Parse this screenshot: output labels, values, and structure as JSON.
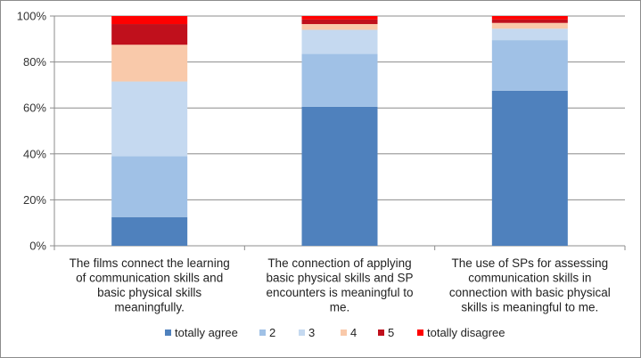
{
  "chart_data": {
    "type": "bar",
    "stacked": true,
    "percent": true,
    "categories": [
      [
        "The films connect the learning",
        "of communication skills and",
        "basic physical skills",
        "meaningfully."
      ],
      [
        "The connection of applying",
        "basic physical skills and SP",
        "encounters is meaningful to",
        "me."
      ],
      [
        "The use of SPs for assessing",
        "communication skills in",
        "connection with basic physical",
        "skills is meaningful to me."
      ]
    ],
    "series": [
      {
        "name": "totally agree",
        "color": "#4f81bd",
        "values": [
          12.5,
          60.5,
          67.5
        ]
      },
      {
        "name": "2",
        "color": "#a0c1e6",
        "values": [
          26.5,
          23.0,
          22.0
        ]
      },
      {
        "name": "3",
        "color": "#c5d9f0",
        "values": [
          32.5,
          10.5,
          5.0
        ]
      },
      {
        "name": "4",
        "color": "#f9c9aa",
        "values": [
          16.0,
          2.5,
          2.5
        ]
      },
      {
        "name": "5",
        "color": "#c0101c",
        "values": [
          9.0,
          2.0,
          1.5
        ]
      },
      {
        "name": "totally disagree",
        "color": "#ff0000",
        "values": [
          3.5,
          1.5,
          1.5
        ]
      }
    ],
    "y_ticks": [
      "0%",
      "20%",
      "40%",
      "60%",
      "80%",
      "100%"
    ],
    "ylim": [
      0,
      100
    ],
    "grid": true,
    "legend_position": "bottom"
  }
}
